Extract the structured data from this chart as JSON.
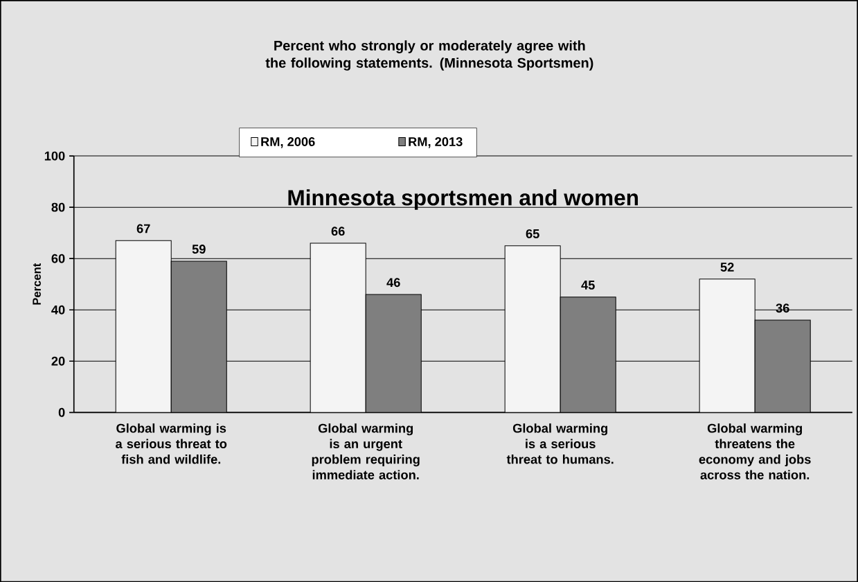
{
  "chart_data": {
    "type": "bar",
    "title": "Percent who strongly or moderately agree with the following statements. (Minnesota Sportsmen)",
    "ylabel": "Percent",
    "annotations": [
      "Minnesota sportsmen and women"
    ],
    "categories": [
      "Global warming is a serious threat to fish and wildlife.",
      "Global warming is an urgent problem requiring immediate action.",
      "Global warming is a serious threat to humans.",
      "Global warming threatens the economy and jobs across the nation."
    ],
    "series": [
      {
        "name": "RM, 2006",
        "color": "#f4f4f4",
        "values": [
          67,
          66,
          65,
          52
        ]
      },
      {
        "name": "RM, 2013",
        "color": "#7f7f7f",
        "values": [
          59,
          46,
          45,
          36
        ]
      }
    ],
    "ylim": [
      0,
      100
    ],
    "yticks": [
      0,
      20,
      40,
      60,
      80,
      100
    ],
    "grid": "y",
    "legend": "top",
    "data_labels": true
  }
}
